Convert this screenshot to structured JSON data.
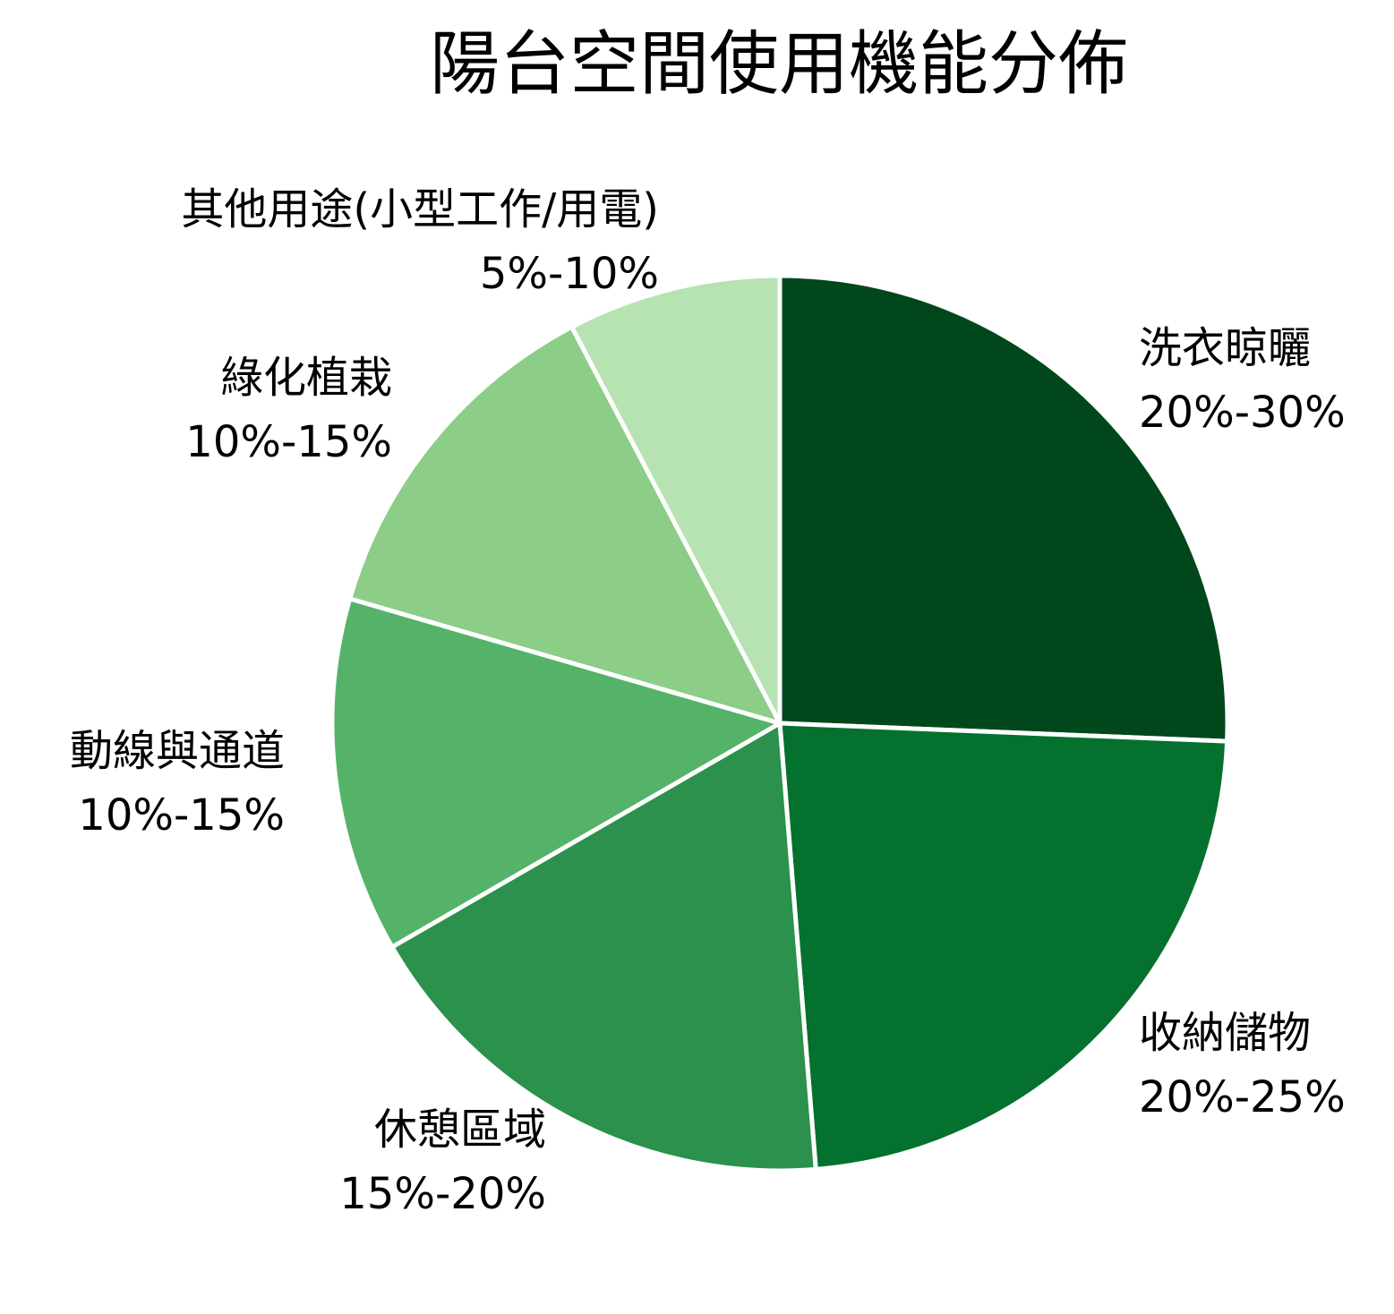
{
  "chart_data": {
    "type": "pie",
    "title": "陽台空間使用機能分佈",
    "start_angle": "12 o'clock",
    "direction": "clockwise",
    "slices": [
      {
        "label": "洗衣晾曬",
        "range": "20%-30%",
        "value": 25.0,
        "color": "#00471b"
      },
      {
        "label": "收納儲物",
        "range": "20%-25%",
        "value": 22.5,
        "color": "#05712f"
      },
      {
        "label": "休憩區域",
        "range": "15%-20%",
        "value": 17.5,
        "color": "#2b914c"
      },
      {
        "label": "動線與通道",
        "range": "10%-15%",
        "value": 12.5,
        "color": "#54b368"
      },
      {
        "label": "綠化植栽",
        "range": "10%-15%",
        "value": 12.5,
        "color": "#8ccd87"
      },
      {
        "label": "其他用途(小型工作/用電)",
        "range": "5%-10%",
        "value": 7.5,
        "color": "#b7e2b1"
      }
    ],
    "slice_edge_color": "#ffffff"
  }
}
